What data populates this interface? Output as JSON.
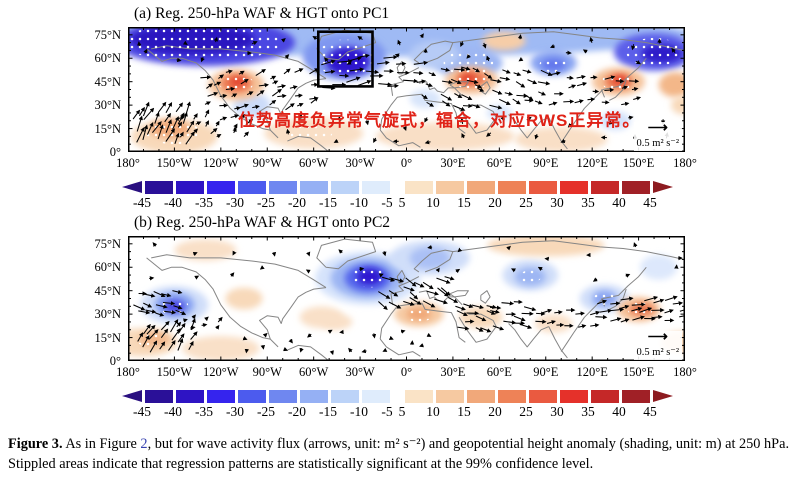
{
  "figure": {
    "panels": [
      {
        "title": "(a) Reg. 250-hPa WAF & HGT onto PC1",
        "y_ticks": [
          "75°N",
          "60°N",
          "45°N",
          "30°N",
          "15°N",
          "0°"
        ],
        "x_ticks": [
          "180°",
          "150°W",
          "120°W",
          "90°W",
          "60°W",
          "30°W",
          "0°",
          "30°E",
          "60°E",
          "90°E",
          "120°E",
          "150°E",
          "180°"
        ],
        "vector_scale_label": "0.5 m² s⁻²",
        "annotation": "位势高度负异常气旋式，辐合，对应RWS正异常。"
      },
      {
        "title": "(b) Reg. 250-hPa WAF & HGT onto PC2",
        "y_ticks": [
          "75°N",
          "60°N",
          "45°N",
          "30°N",
          "15°N",
          "0°"
        ],
        "x_ticks": [
          "180°",
          "150°W",
          "120°W",
          "90°W",
          "60°W",
          "30°W",
          "0°",
          "30°E",
          "60°E",
          "90°E",
          "120°E",
          "150°E",
          "180°"
        ],
        "vector_scale_label": "0.5 m² s⁻²"
      }
    ],
    "colorbar": {
      "tick_labels": [
        "-45",
        "-40",
        "-35",
        "-30",
        "-25",
        "-20",
        "-15",
        "-10",
        "-5",
        "5",
        "10",
        "15",
        "20",
        "25",
        "30",
        "35",
        "40",
        "45"
      ],
      "negative_colors": [
        "#2a1098",
        "#2e14c4",
        "#3524ee",
        "#4c5bee",
        "#6f87f0",
        "#95b0f4",
        "#bcd3f8",
        "#dfecfc"
      ],
      "positive_colors": [
        "#fae3c6",
        "#f6c9a1",
        "#f1a87a",
        "#ee8257",
        "#ea5a40",
        "#e5312a",
        "#c52828",
        "#a02026"
      ],
      "left_cap_color": "#2a1080",
      "right_cap_color": "#8d1b20"
    },
    "annotation_color": "#e02217",
    "caption": {
      "label": "Figure 3.",
      "pre_link": "  As in Figure ",
      "link": "2",
      "post_link": ", but for wave activity flux (arrows, unit: m² s⁻²) and geopotential height anomaly (shading, unit: m) at 250 hPa. Stippled areas indicate that regression patterns are statistically significant at the 99% confidence level."
    }
  }
}
